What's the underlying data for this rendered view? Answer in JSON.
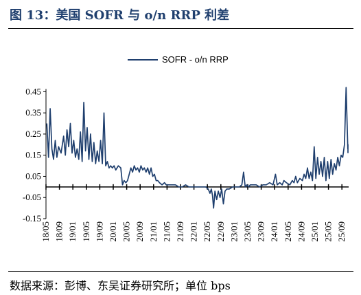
{
  "header": {
    "title": "图 13：美国 SOFR 与 o/n RRP 利差"
  },
  "footer": {
    "source": "数据来源：彭博、东吴证券研究所；单位 bps"
  },
  "colors": {
    "series": "#1f3f6e",
    "title": "#1f3f6e"
  },
  "chart_data": {
    "type": "line",
    "title": "",
    "xlabel": "",
    "ylabel": "",
    "ylim": [
      -0.15,
      0.5
    ],
    "yticks": [
      -0.15,
      -0.05,
      0.05,
      0.15,
      0.25,
      0.35,
      0.45
    ],
    "ytick_labels": [
      "-0.15",
      "-0.05",
      "0.05",
      "0.15",
      "0.25",
      "0.35",
      "0.45"
    ],
    "xticks": [
      "18/05",
      "18/09",
      "19/01",
      "19/05",
      "19/09",
      "20/01",
      "20/05",
      "20/09",
      "21/01",
      "21/05",
      "21/09",
      "22/01",
      "22/05",
      "22/09",
      "23/01",
      "23/05",
      "23/09",
      "24/01",
      "24/05",
      "24/09",
      "25/01",
      "25/05",
      "25/09"
    ],
    "x_start": "2018-05",
    "x_end": "2025-11",
    "legend_position": "top-center",
    "grid": false,
    "series": [
      {
        "name": "SOFR - o/n RRP",
        "points": [
          [
            "2018-05",
            0.3
          ],
          [
            "2018-05",
            0.14
          ],
          [
            "2018-06",
            0.37
          ],
          [
            "2018-06",
            0.18
          ],
          [
            "2018-07",
            0.13
          ],
          [
            "2018-07",
            0.22
          ],
          [
            "2018-08",
            0.14
          ],
          [
            "2018-08",
            0.19
          ],
          [
            "2018-09",
            0.16
          ],
          [
            "2018-10",
            0.24
          ],
          [
            "2018-10",
            0.15
          ],
          [
            "2018-11",
            0.27
          ],
          [
            "2018-11",
            0.19
          ],
          [
            "2018-12",
            0.3
          ],
          [
            "2018-12",
            0.16
          ],
          [
            "2019-01",
            0.22
          ],
          [
            "2019-01",
            0.14
          ],
          [
            "2019-02",
            0.18
          ],
          [
            "2019-02",
            0.13
          ],
          [
            "2019-03",
            0.26
          ],
          [
            "2019-03",
            0.12
          ],
          [
            "2019-04",
            0.4
          ],
          [
            "2019-04",
            0.17
          ],
          [
            "2019-05",
            0.28
          ],
          [
            "2019-05",
            0.13
          ],
          [
            "2019-06",
            0.25
          ],
          [
            "2019-06",
            0.12
          ],
          [
            "2019-07",
            0.21
          ],
          [
            "2019-07",
            0.11
          ],
          [
            "2019-08",
            0.17
          ],
          [
            "2019-08",
            0.12
          ],
          [
            "2019-09",
            0.22
          ],
          [
            "2019-09",
            0.11
          ],
          [
            "2019-10",
            0.35
          ],
          [
            "2019-10",
            0.1
          ],
          [
            "2019-11",
            0.12
          ],
          [
            "2019-11",
            0.09
          ],
          [
            "2019-12",
            0.1
          ],
          [
            "2019-12",
            0.09
          ],
          [
            "2020-01",
            0.1
          ],
          [
            "2020-01",
            0.08
          ],
          [
            "2020-02",
            0.1
          ],
          [
            "2020-03",
            0.09
          ],
          [
            "2020-03",
            0.01
          ],
          [
            "2020-04",
            0.03
          ],
          [
            "2020-04",
            0.02
          ],
          [
            "2020-05",
            0.03
          ],
          [
            "2020-05",
            0.06
          ],
          [
            "2020-06",
            0.09
          ],
          [
            "2020-06",
            0.07
          ],
          [
            "2020-07",
            0.1
          ],
          [
            "2020-07",
            0.08
          ],
          [
            "2020-08",
            0.09
          ],
          [
            "2020-08",
            0.07
          ],
          [
            "2020-09",
            0.1
          ],
          [
            "2020-09",
            0.08
          ],
          [
            "2020-10",
            0.09
          ],
          [
            "2020-10",
            0.07
          ],
          [
            "2020-11",
            0.09
          ],
          [
            "2020-11",
            0.06
          ],
          [
            "2020-12",
            0.09
          ],
          [
            "2020-12",
            0.05
          ],
          [
            "2021-01",
            0.06
          ],
          [
            "2021-01",
            0.03
          ],
          [
            "2021-02",
            0.03
          ],
          [
            "2021-02",
            0.02
          ],
          [
            "2021-03",
            0.01
          ],
          [
            "2021-04",
            0.02
          ],
          [
            "2021-04",
            0.01
          ],
          [
            "2021-05",
            0.01
          ],
          [
            "2021-06",
            0.01
          ],
          [
            "2021-07",
            0.01
          ],
          [
            "2021-08",
            0.0
          ],
          [
            "2021-09",
            0.0
          ],
          [
            "2021-10",
            0.01
          ],
          [
            "2021-11",
            0.0
          ],
          [
            "2021-12",
            0.0
          ],
          [
            "2022-01",
            0.0
          ],
          [
            "2022-02",
            0.0
          ],
          [
            "2022-03",
            0.0
          ],
          [
            "2022-04",
            0.0
          ],
          [
            "2022-05",
            -0.01
          ],
          [
            "2022-05",
            -0.03
          ],
          [
            "2022-06",
            -0.01
          ],
          [
            "2022-06",
            -0.04
          ],
          [
            "2022-06",
            -0.1
          ],
          [
            "2022-07",
            -0.02
          ],
          [
            "2022-07",
            -0.06
          ],
          [
            "2022-08",
            -0.02
          ],
          [
            "2022-08",
            -0.05
          ],
          [
            "2022-09",
            -0.01
          ],
          [
            "2022-09",
            -0.08
          ],
          [
            "2022-10",
            -0.02
          ],
          [
            "2022-10",
            -0.01
          ],
          [
            "2022-11",
            -0.01
          ],
          [
            "2022-12",
            0.0
          ],
          [
            "2023-01",
            0.0
          ],
          [
            "2023-02",
            0.0
          ],
          [
            "2023-03",
            0.01
          ],
          [
            "2023-03",
            0.07
          ],
          [
            "2023-04",
            0.0
          ],
          [
            "2023-04",
            0.01
          ],
          [
            "2023-05",
            0.0
          ],
          [
            "2023-05",
            0.01
          ],
          [
            "2023-06",
            0.01
          ],
          [
            "2023-07",
            0.01
          ],
          [
            "2023-08",
            0.0
          ],
          [
            "2023-09",
            0.01
          ],
          [
            "2023-10",
            0.01
          ],
          [
            "2023-11",
            0.02
          ],
          [
            "2023-12",
            0.01
          ],
          [
            "2024-01",
            0.06
          ],
          [
            "2024-01",
            0.01
          ],
          [
            "2024-02",
            0.02
          ],
          [
            "2024-03",
            0.01
          ],
          [
            "2024-03",
            0.03
          ],
          [
            "2024-04",
            0.02
          ],
          [
            "2024-05",
            0.01
          ],
          [
            "2024-06",
            0.03
          ],
          [
            "2024-06",
            0.02
          ],
          [
            "2024-07",
            0.05
          ],
          [
            "2024-07",
            0.02
          ],
          [
            "2024-08",
            0.04
          ],
          [
            "2024-09",
            0.03
          ],
          [
            "2024-09",
            0.06
          ],
          [
            "2024-10",
            0.04
          ],
          [
            "2024-10",
            0.09
          ],
          [
            "2024-11",
            0.04
          ],
          [
            "2024-11",
            0.07
          ],
          [
            "2024-12",
            0.03
          ],
          [
            "2024-12",
            0.19
          ],
          [
            "2025-01",
            0.04
          ],
          [
            "2025-01",
            0.14
          ],
          [
            "2025-02",
            0.06
          ],
          [
            "2025-02",
            0.12
          ],
          [
            "2025-03",
            0.05
          ],
          [
            "2025-03",
            0.14
          ],
          [
            "2025-04",
            0.03
          ],
          [
            "2025-04",
            0.12
          ],
          [
            "2025-05",
            0.04
          ],
          [
            "2025-05",
            0.13
          ],
          [
            "2025-06",
            0.06
          ],
          [
            "2025-06",
            0.11
          ],
          [
            "2025-07",
            0.08
          ],
          [
            "2025-07",
            0.14
          ],
          [
            "2025-08",
            0.1
          ],
          [
            "2025-08",
            0.15
          ],
          [
            "2025-09",
            0.14
          ],
          [
            "2025-09",
            0.2
          ],
          [
            "2025-10",
            0.47
          ],
          [
            "2025-10",
            0.18
          ],
          [
            "2025-11",
            0.2
          ],
          [
            "2025-11",
            0.16
          ]
        ]
      }
    ]
  }
}
